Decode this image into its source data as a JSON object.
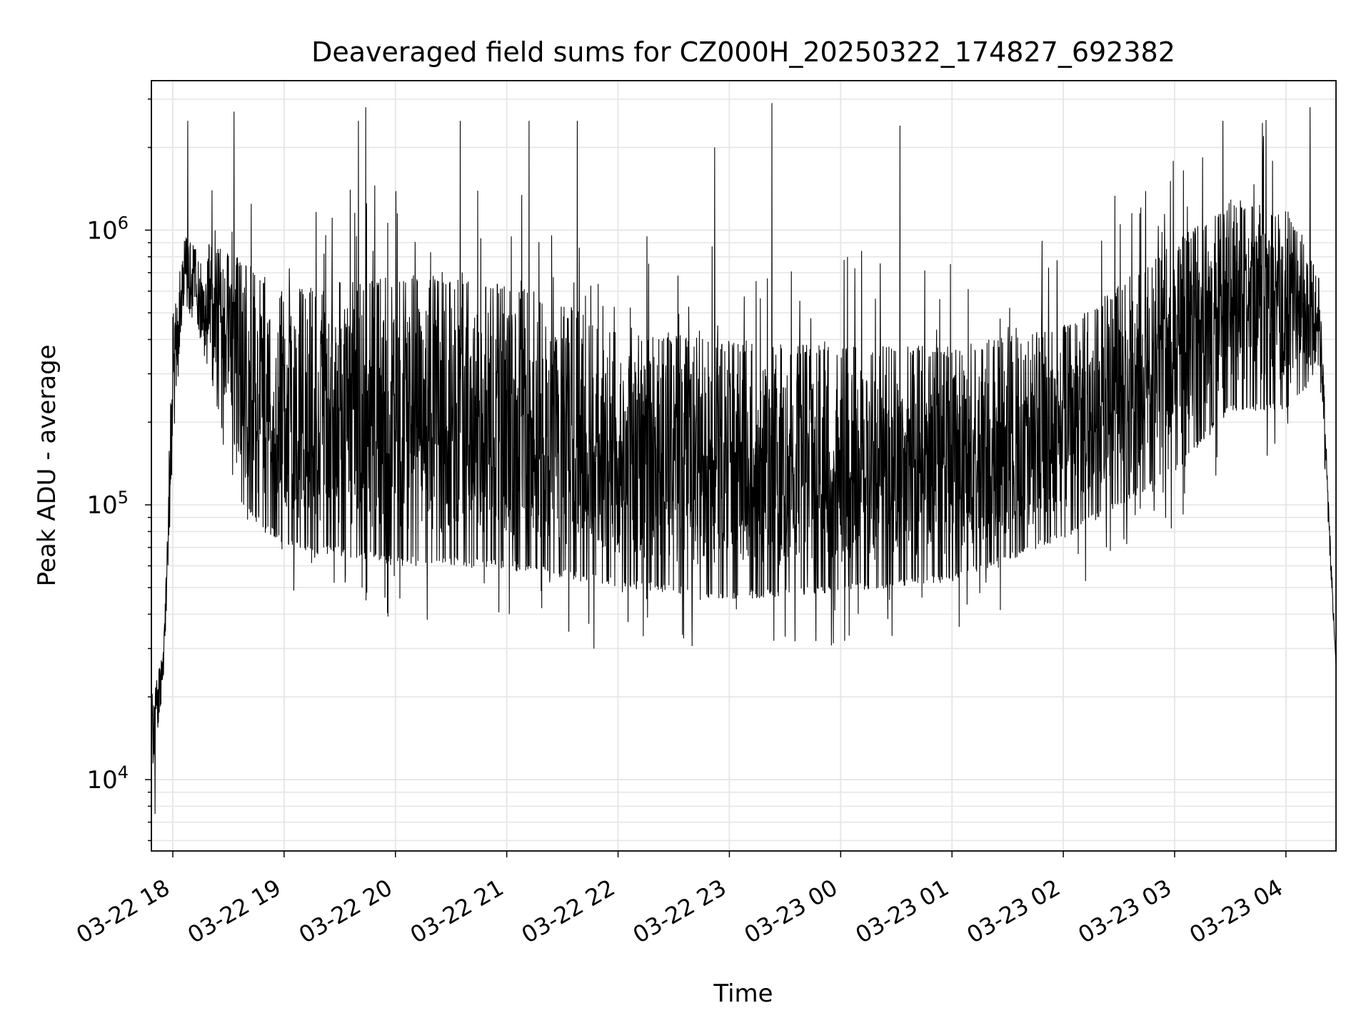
{
  "chart_data": {
    "type": "line",
    "title": "Deaveraged field sums for CZ000H_20250322_174827_692382",
    "xlabel": "Time",
    "ylabel": "Peak ADU - average",
    "x_start": "2025-03-22T17:48:27",
    "x_end": "2025-03-23T04:27:00",
    "x_ticks": [
      {
        "time": "2025-03-22T18:00",
        "label": "03-22 18"
      },
      {
        "time": "2025-03-22T19:00",
        "label": "03-22 19"
      },
      {
        "time": "2025-03-22T20:00",
        "label": "03-22 20"
      },
      {
        "time": "2025-03-22T21:00",
        "label": "03-22 21"
      },
      {
        "time": "2025-03-22T22:00",
        "label": "03-22 22"
      },
      {
        "time": "2025-03-22T23:00",
        "label": "03-22 23"
      },
      {
        "time": "2025-03-23T00:00",
        "label": "03-23 00"
      },
      {
        "time": "2025-03-23T01:00",
        "label": "03-23 01"
      },
      {
        "time": "2025-03-23T02:00",
        "label": "03-23 02"
      },
      {
        "time": "2025-03-23T03:00",
        "label": "03-23 03"
      },
      {
        "time": "2025-03-23T04:00",
        "label": "03-23 04"
      }
    ],
    "y_scale": "log",
    "ylim": [
      5500,
      3500000
    ],
    "y_ticks": [
      {
        "value": 10000,
        "base": "10",
        "exp": "4"
      },
      {
        "value": 100000,
        "base": "10",
        "exp": "5"
      },
      {
        "value": 1000000,
        "base": "10",
        "exp": "6"
      }
    ],
    "grid": true,
    "legend": "none",
    "line_color": "#000000",
    "grid_color": "#e6e6e6",
    "envelope": [
      {
        "time": "2025-03-22T17:48:27",
        "low": 10000,
        "high": 20000
      },
      {
        "time": "2025-03-22T17:55:00",
        "low": 22000,
        "high": 30000
      },
      {
        "time": "2025-03-22T18:00:00",
        "low": 160000,
        "high": 500000
      },
      {
        "time": "2025-03-22T18:06:00",
        "low": 550000,
        "high": 1000000
      },
      {
        "time": "2025-03-22T18:20:00",
        "low": 300000,
        "high": 900000
      },
      {
        "time": "2025-03-22T18:35:00",
        "low": 100000,
        "high": 800000
      },
      {
        "time": "2025-03-22T19:00:00",
        "low": 70000,
        "high": 600000
      },
      {
        "time": "2025-03-22T20:00:00",
        "low": 60000,
        "high": 700000
      },
      {
        "time": "2025-03-22T21:00:00",
        "low": 58000,
        "high": 650000
      },
      {
        "time": "2025-03-22T22:00:00",
        "low": 50000,
        "high": 450000
      },
      {
        "time": "2025-03-22T23:00:00",
        "low": 45000,
        "high": 400000
      },
      {
        "time": "2025-03-23T00:00:00",
        "low": 48000,
        "high": 380000
      },
      {
        "time": "2025-03-23T01:00:00",
        "low": 52000,
        "high": 380000
      },
      {
        "time": "2025-03-23T02:00:00",
        "low": 75000,
        "high": 450000
      },
      {
        "time": "2025-03-23T03:00:00",
        "low": 130000,
        "high": 900000
      },
      {
        "time": "2025-03-23T03:30:00",
        "low": 220000,
        "high": 1300000
      },
      {
        "time": "2025-03-23T04:00:00",
        "low": 220000,
        "high": 1200000
      },
      {
        "time": "2025-03-23T04:18:00",
        "low": 300000,
        "high": 700000
      },
      {
        "time": "2025-03-23T04:27:00",
        "low": 26000,
        "high": 26000
      }
    ],
    "spikes": [
      {
        "time": "2025-03-22T18:08:00",
        "value": 2500000
      },
      {
        "time": "2025-03-22T18:33:00",
        "value": 2700000
      },
      {
        "time": "2025-03-22T19:40:00",
        "value": 2500000
      },
      {
        "time": "2025-03-22T19:44:00",
        "value": 2800000
      },
      {
        "time": "2025-03-22T20:35:00",
        "value": 2500000
      },
      {
        "time": "2025-03-22T21:12:00",
        "value": 2500000
      },
      {
        "time": "2025-03-22T21:38:00",
        "value": 2500000
      },
      {
        "time": "2025-03-22T22:52:00",
        "value": 2000000
      },
      {
        "time": "2025-03-22T23:23:00",
        "value": 2900000
      },
      {
        "time": "2025-03-23T00:32:00",
        "value": 2400000
      },
      {
        "time": "2025-03-23T03:26:00",
        "value": 2500000
      },
      {
        "time": "2025-03-23T03:48:00",
        "value": 2200000
      },
      {
        "time": "2025-03-23T04:13:00",
        "value": 2800000
      },
      {
        "time": "2025-03-22T21:47:00",
        "value": 30000
      },
      {
        "time": "2025-03-22T23:24:00",
        "value": 32000
      },
      {
        "time": "2025-03-22T17:50:30",
        "value": 7500
      }
    ]
  }
}
